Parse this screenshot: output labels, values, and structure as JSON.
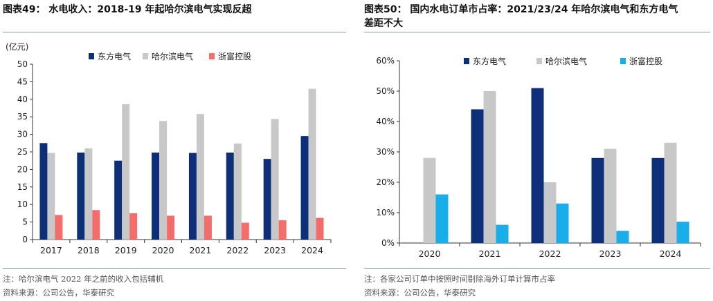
{
  "left": {
    "title": "图表49： 水电收入：2018-19 年起哈尔滨电气实现反超",
    "note": "注：哈尔滨电气 2022 年之前的收入包括辅机",
    "source": "资料来源：公司公告，华泰研究"
  },
  "right": {
    "title_line1": "图表50： 国内水电订单市占率：2021/23/24 年哈尔滨电气和东方电气",
    "title_line2": "差距不大",
    "note": "注：各家公司订单中按照时间剔除海外订单计算市占率",
    "source": "资料来源：公司公告，华泰研究"
  },
  "chart_data": [
    {
      "type": "bar",
      "title": "水电收入：2018-19 年起哈尔滨电气实现反超",
      "ylabel": "(亿元)",
      "categories": [
        "2017",
        "2018",
        "2019",
        "2020",
        "2021",
        "2022",
        "2023",
        "2024"
      ],
      "ylim": [
        0,
        50
      ],
      "yticks": [
        0,
        5,
        10,
        15,
        20,
        25,
        30,
        35,
        40,
        45,
        50
      ],
      "legend_position": "top",
      "series": [
        {
          "name": "东方电气",
          "color": "#0d2f7a",
          "values": [
            27.5,
            24.8,
            22.5,
            24.8,
            24.7,
            24.8,
            23.0,
            29.5
          ]
        },
        {
          "name": "哈尔滨电气",
          "color": "#c8c8c8",
          "values": [
            24.7,
            26.0,
            38.6,
            33.8,
            35.8,
            27.4,
            34.4,
            43.0
          ]
        },
        {
          "name": "浙富控股",
          "color": "#f36d6a",
          "values": [
            7.0,
            8.4,
            7.5,
            6.8,
            6.8,
            4.8,
            5.5,
            6.2
          ]
        }
      ]
    },
    {
      "type": "bar",
      "title": "国内水电订单市占率：2021/23/24 年哈尔滨电气和东方电气差距不大",
      "ylabel": "",
      "categories": [
        "2020",
        "2021",
        "2022",
        "2023",
        "2024"
      ],
      "ylim": [
        0,
        60
      ],
      "yticks": [
        0,
        10,
        20,
        30,
        40,
        50,
        60
      ],
      "ytick_suffix": "%",
      "legend_position": "top",
      "series": [
        {
          "name": "东方电气",
          "color": "#0d2f7a",
          "values": [
            0,
            44,
            51,
            28,
            28
          ]
        },
        {
          "name": "哈尔滨电气",
          "color": "#c8c8c8",
          "values": [
            28,
            50,
            20,
            31,
            33
          ]
        },
        {
          "name": "浙富控股",
          "color": "#19aeea",
          "values": [
            16,
            6,
            13,
            4,
            7
          ]
        }
      ]
    }
  ]
}
